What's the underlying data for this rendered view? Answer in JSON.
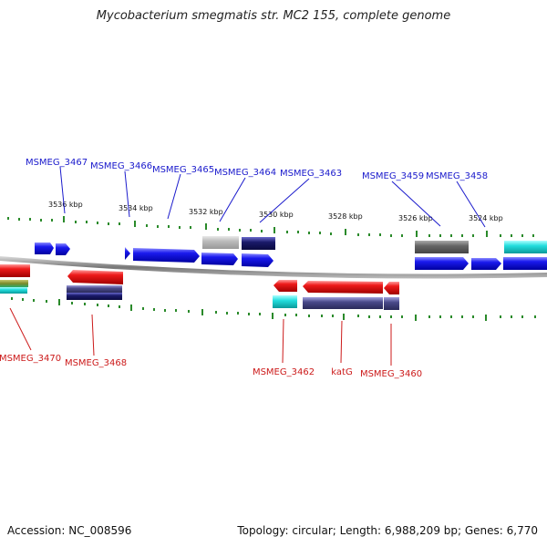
{
  "title": "Mycobacterium smegmatis str. MC2 155, complete genome",
  "footer": {
    "accession": "Accession: NC_008596",
    "topology": "Topology: circular; Length: 6,988,209 bp; Genes: 6,770"
  },
  "colors": {
    "forward_label": "#1a1acc",
    "reverse_label": "#cc1a1a",
    "backbone": "#888888",
    "tick": "#2a8a2a"
  },
  "scale_labels": [
    "3536 kbp",
    "3534 kbp",
    "3532 kbp",
    "3530 kbp",
    "3528 kbp",
    "3526 kbp",
    "3524 kbp"
  ],
  "forward_genes": [
    "MSMEG_3467",
    "MSMEG_3466",
    "MSMEG_3465",
    "MSMEG_3464",
    "MSMEG_3463",
    "MSMEG_3459",
    "MSMEG_3458"
  ],
  "reverse_genes": [
    "MSMEG_3470",
    "MSMEG_3468",
    "MSMEG_3462",
    "katG",
    "MSMEG_3460"
  ]
}
